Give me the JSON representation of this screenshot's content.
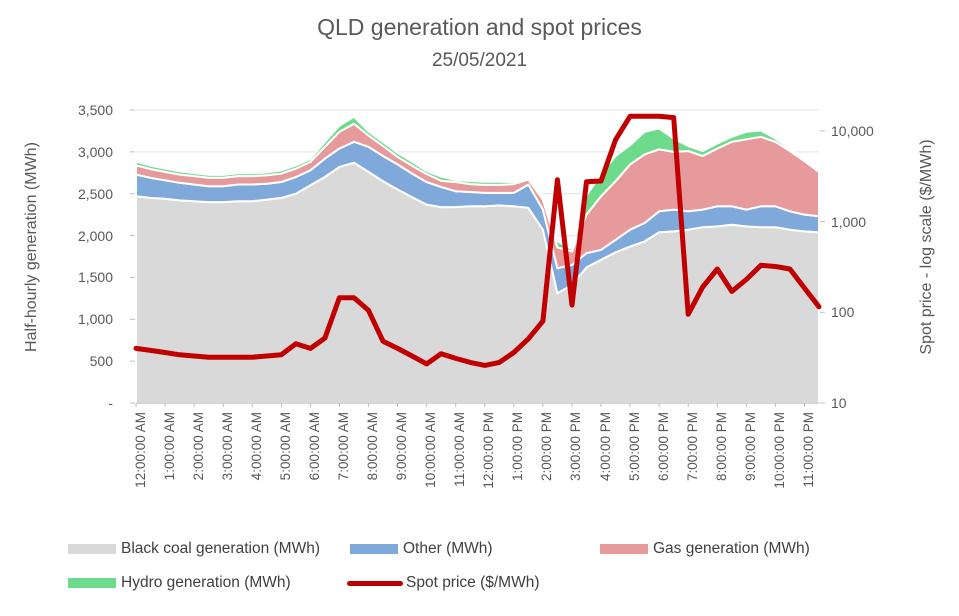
{
  "title": "QLD generation and spot prices",
  "subtitle": "25/05/2021",
  "axes": {
    "left": {
      "title": "Half-hourly generation (MWh)",
      "ticks": [
        {
          "label": "3,500",
          "value": 3500
        },
        {
          "label": "3,000",
          "value": 3000
        },
        {
          "label": "2,500",
          "value": 2500
        },
        {
          "label": "2,000",
          "value": 2000
        },
        {
          "label": "1,500",
          "value": 1500
        },
        {
          "label": "1,000",
          "value": 1000
        },
        {
          "label": "500",
          "value": 500
        },
        {
          "label": "-",
          "value": 0
        }
      ]
    },
    "right": {
      "title": "Spot price - log scale ($/MWh)",
      "ticks": [
        {
          "label": "10,000",
          "value": 10000
        },
        {
          "label": "1,000",
          "value": 1000
        },
        {
          "label": "100",
          "value": 100
        },
        {
          "label": "10",
          "value": 10
        }
      ]
    }
  },
  "legend": [
    {
      "label": "Black coal generation (MWh)",
      "color": "#D9D9D9",
      "type": "area"
    },
    {
      "label": "Other (MWh)",
      "color": "#7FA8DB",
      "type": "area"
    },
    {
      "label": "Gas generation (MWh)",
      "color": "#E69A9B",
      "type": "area"
    },
    {
      "label": "Hydro generation (MWh)",
      "color": "#6EDB8C",
      "type": "area"
    },
    {
      "label": "Spot price ($/MWh)",
      "color": "#C00000",
      "type": "line"
    }
  ],
  "chart_data": {
    "type": "area",
    "stacked": true,
    "grid": true,
    "gen_axis_max": 3500,
    "price_axis_min": 10,
    "price_axis_max": 17000,
    "x_labels": [
      "12:00:00 AM",
      "1:00:00 AM",
      "2:00:00 AM",
      "3:00:00 AM",
      "4:00:00 AM",
      "5:00:00 AM",
      "6:00:00 AM",
      "7:00:00 AM",
      "8:00:00 AM",
      "9:00:00 AM",
      "10:00:00 AM",
      "11:00:00 AM",
      "12:00:00 PM",
      "1:00:00 PM",
      "2:00:00 PM",
      "3:00:00 PM",
      "4:00:00 PM",
      "5:00:00 PM",
      "6:00:00 PM",
      "7:00:00 PM",
      "8:00:00 PM",
      "9:00:00 PM",
      "10:00:00 PM",
      "11:00:00 PM"
    ],
    "categories": [
      "12:00:00 AM",
      "12:30:00 AM",
      "1:00:00 AM",
      "1:30:00 AM",
      "2:00:00 AM",
      "2:30:00 AM",
      "3:00:00 AM",
      "3:30:00 AM",
      "4:00:00 AM",
      "4:30:00 AM",
      "5:00:00 AM",
      "5:30:00 AM",
      "6:00:00 AM",
      "6:30:00 AM",
      "7:00:00 AM",
      "7:30:00 AM",
      "8:00:00 AM",
      "8:30:00 AM",
      "9:00:00 AM",
      "9:30:00 AM",
      "10:00:00 AM",
      "10:30:00 AM",
      "11:00:00 AM",
      "11:30:00 AM",
      "12:00:00 PM",
      "12:30:00 PM",
      "1:00:00 PM",
      "1:30:00 PM",
      "2:00:00 PM",
      "2:30:00 PM",
      "3:00:00 PM",
      "3:30:00 PM",
      "4:00:00 PM",
      "4:30:00 PM",
      "5:00:00 PM",
      "5:30:00 PM",
      "6:00:00 PM",
      "6:30:00 PM",
      "7:00:00 PM",
      "7:30:00 PM",
      "8:00:00 PM",
      "8:30:00 PM",
      "9:00:00 PM",
      "9:30:00 PM",
      "10:00:00 PM",
      "10:30:00 PM",
      "11:00:00 PM",
      "11:30:00 PM"
    ],
    "series": [
      {
        "name": "Black coal generation (MWh)",
        "kind": "area",
        "axis": "left",
        "color": "#D9D9D9",
        "values": [
          2470,
          2450,
          2440,
          2420,
          2410,
          2400,
          2400,
          2410,
          2410,
          2430,
          2450,
          2500,
          2600,
          2700,
          2820,
          2870,
          2760,
          2650,
          2550,
          2460,
          2370,
          2340,
          2340,
          2350,
          2350,
          2360,
          2350,
          2330,
          2070,
          1310,
          1410,
          1620,
          1710,
          1800,
          1870,
          1930,
          2040,
          2050,
          2070,
          2100,
          2110,
          2130,
          2110,
          2100,
          2100,
          2070,
          2050,
          2040
        ]
      },
      {
        "name": "Other (MWh)",
        "kind": "area",
        "axis": "left",
        "color": "#7FA8DB",
        "values": [
          260,
          240,
          220,
          210,
          200,
          190,
          190,
          200,
          200,
          190,
          190,
          200,
          180,
          220,
          220,
          250,
          300,
          300,
          300,
          280,
          270,
          240,
          190,
          170,
          160,
          150,
          160,
          280,
          240,
          300,
          240,
          170,
          120,
          150,
          200,
          220,
          250,
          260,
          220,
          210,
          240,
          220,
          200,
          250,
          250,
          220,
          200,
          190
        ]
      },
      {
        "name": "Gas generation (MWh)",
        "kind": "area",
        "axis": "left",
        "color": "#E69A9B",
        "values": [
          110,
          105,
          100,
          100,
          100,
          100,
          100,
          100,
          100,
          100,
          100,
          100,
          100,
          140,
          200,
          215,
          135,
          120,
          90,
          95,
          95,
          75,
          110,
          95,
          95,
          95,
          105,
          60,
          120,
          250,
          160,
          460,
          640,
          700,
          780,
          820,
          740,
          690,
          720,
          640,
          690,
          770,
          840,
          830,
          770,
          720,
          640,
          530
        ]
      },
      {
        "name": "Hydro generation (MWh)",
        "kind": "area",
        "axis": "left",
        "color": "#6EDB8C",
        "values": [
          45,
          40,
          40,
          38,
          36,
          35,
          35,
          35,
          35,
          35,
          38,
          40,
          36,
          60,
          72,
          85,
          48,
          48,
          48,
          49,
          36,
          48,
          24,
          37,
          37,
          37,
          25,
          25,
          36,
          70,
          30,
          230,
          265,
          300,
          230,
          270,
          250,
          160,
          60,
          60,
          60,
          60,
          90,
          75,
          40,
          25,
          25,
          15
        ]
      },
      {
        "name": "Spot price ($/MWh)",
        "kind": "line",
        "axis": "right",
        "color": "#C00000",
        "values": [
          40,
          38,
          36,
          34,
          33,
          32,
          32,
          32,
          32,
          33,
          34,
          45,
          40,
          52,
          145,
          145,
          105,
          48,
          40,
          33,
          27,
          35,
          31,
          28,
          26,
          28,
          36,
          51,
          80,
          2900,
          120,
          2750,
          2800,
          8000,
          14500,
          14500,
          14500,
          14000,
          95,
          190,
          300,
          170,
          230,
          330,
          320,
          300,
          185,
          115
        ]
      }
    ]
  },
  "colors": {
    "text": "#595959",
    "gridline": "#E2E2E2",
    "axis": "#BFBFBF",
    "band_border": "#FFFFFF"
  }
}
